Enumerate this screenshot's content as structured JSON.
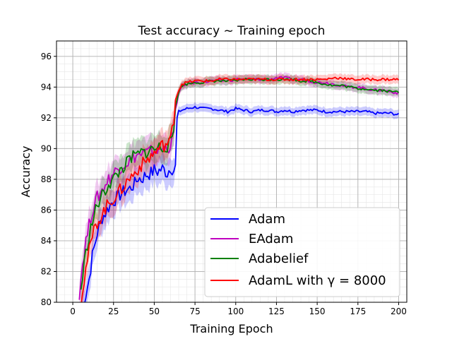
{
  "chart_data": {
    "type": "line",
    "title": "Test accuracy ~ Training epoch",
    "xlabel": "Training Epoch",
    "ylabel": "Accuracy",
    "xlim": [
      -10,
      205
    ],
    "ylim": [
      80,
      97
    ],
    "xticks": [
      0,
      25,
      50,
      75,
      100,
      125,
      150,
      175,
      200
    ],
    "yticks": [
      80,
      82,
      84,
      86,
      88,
      90,
      92,
      94,
      96
    ],
    "grid": true,
    "minor_grid": true,
    "legend_position": "lower-right",
    "series": [
      {
        "name": "Adam",
        "color": "#0000ff",
        "points": [
          [
            5,
            79.5
          ],
          [
            8,
            80.5
          ],
          [
            10,
            81.5
          ],
          [
            12,
            83
          ],
          [
            15,
            84.5
          ],
          [
            18,
            85.5
          ],
          [
            20,
            85.8
          ],
          [
            22,
            86.2
          ],
          [
            25,
            86.6
          ],
          [
            28,
            86.9
          ],
          [
            30,
            87.1
          ],
          [
            33,
            87.3
          ],
          [
            35,
            87.4
          ],
          [
            38,
            87.7
          ],
          [
            40,
            88.1
          ],
          [
            42,
            88.0
          ],
          [
            45,
            88.3
          ],
          [
            48,
            88.4
          ],
          [
            50,
            88.6
          ],
          [
            52,
            88.5
          ],
          [
            55,
            88.7
          ],
          [
            58,
            88.4
          ],
          [
            60,
            88.8
          ],
          [
            62,
            88.6
          ],
          [
            63,
            88.9
          ],
          [
            64,
            92.0
          ],
          [
            65,
            92.4
          ],
          [
            67,
            92.5
          ],
          [
            70,
            92.6
          ],
          [
            75,
            92.7
          ],
          [
            80,
            92.6
          ],
          [
            85,
            92.6
          ],
          [
            90,
            92.5
          ],
          [
            95,
            92.4
          ],
          [
            100,
            92.6
          ],
          [
            105,
            92.5
          ],
          [
            110,
            92.4
          ],
          [
            115,
            92.5
          ],
          [
            120,
            92.5
          ],
          [
            125,
            92.4
          ],
          [
            130,
            92.5
          ],
          [
            135,
            92.4
          ],
          [
            140,
            92.5
          ],
          [
            145,
            92.5
          ],
          [
            150,
            92.5
          ],
          [
            155,
            92.4
          ],
          [
            160,
            92.4
          ],
          [
            165,
            92.4
          ],
          [
            170,
            92.4
          ],
          [
            175,
            92.4
          ],
          [
            180,
            92.4
          ],
          [
            185,
            92.3
          ],
          [
            190,
            92.3
          ],
          [
            195,
            92.3
          ],
          [
            200,
            92.2
          ]
        ]
      },
      {
        "name": "EAdam",
        "color": "#bf00bf",
        "points": [
          [
            4,
            80.6
          ],
          [
            6,
            82.5
          ],
          [
            8,
            84
          ],
          [
            10,
            85
          ],
          [
            12,
            86
          ],
          [
            15,
            86.8
          ],
          [
            18,
            87.3
          ],
          [
            20,
            87.7
          ],
          [
            22,
            88
          ],
          [
            25,
            88.4
          ],
          [
            28,
            88.7
          ],
          [
            30,
            88.9
          ],
          [
            33,
            89.1
          ],
          [
            35,
            89.2
          ],
          [
            38,
            89.5
          ],
          [
            40,
            89.6
          ],
          [
            42,
            89.6
          ],
          [
            45,
            89.7
          ],
          [
            48,
            89.8
          ],
          [
            50,
            89.9
          ],
          [
            55,
            90.0
          ],
          [
            58,
            90.1
          ],
          [
            60,
            90.2
          ],
          [
            62,
            91.0
          ],
          [
            63,
            92.5
          ],
          [
            65,
            93.6
          ],
          [
            67,
            94.0
          ],
          [
            70,
            94.2
          ],
          [
            75,
            94.3
          ],
          [
            80,
            94.3
          ],
          [
            85,
            94.4
          ],
          [
            90,
            94.4
          ],
          [
            95,
            94.4
          ],
          [
            100,
            94.5
          ],
          [
            105,
            94.5
          ],
          [
            110,
            94.5
          ],
          [
            115,
            94.5
          ],
          [
            120,
            94.5
          ],
          [
            125,
            94.6
          ],
          [
            130,
            94.6
          ],
          [
            135,
            94.5
          ],
          [
            140,
            94.5
          ],
          [
            145,
            94.4
          ],
          [
            150,
            94.3
          ],
          [
            155,
            94.3
          ],
          [
            160,
            94.2
          ],
          [
            165,
            94.1
          ],
          [
            170,
            94.0
          ],
          [
            175,
            94.0
          ],
          [
            180,
            93.9
          ],
          [
            185,
            93.8
          ],
          [
            190,
            93.8
          ],
          [
            195,
            93.7
          ],
          [
            200,
            93.6
          ]
        ]
      },
      {
        "name": "Adabelief",
        "color": "#008000",
        "points": [
          [
            5,
            80.8
          ],
          [
            7,
            82.5
          ],
          [
            9,
            83.8
          ],
          [
            11,
            84.8
          ],
          [
            13,
            85.6
          ],
          [
            15,
            86.3
          ],
          [
            18,
            86.9
          ],
          [
            20,
            87.3
          ],
          [
            22,
            87.7
          ],
          [
            25,
            88.0
          ],
          [
            28,
            88.4
          ],
          [
            30,
            88.7
          ],
          [
            33,
            89.0
          ],
          [
            35,
            89.3
          ],
          [
            38,
            89.5
          ],
          [
            40,
            89.6
          ],
          [
            42,
            89.7
          ],
          [
            45,
            89.8
          ],
          [
            48,
            89.9
          ],
          [
            50,
            90.0
          ],
          [
            55,
            90.1
          ],
          [
            58,
            90.2
          ],
          [
            60,
            90.3
          ],
          [
            62,
            91.2
          ],
          [
            63,
            92.8
          ],
          [
            65,
            93.7
          ],
          [
            67,
            94.1
          ],
          [
            70,
            94.2
          ],
          [
            75,
            94.3
          ],
          [
            80,
            94.3
          ],
          [
            85,
            94.4
          ],
          [
            90,
            94.4
          ],
          [
            95,
            94.4
          ],
          [
            100,
            94.4
          ],
          [
            105,
            94.5
          ],
          [
            110,
            94.5
          ],
          [
            115,
            94.5
          ],
          [
            120,
            94.5
          ],
          [
            125,
            94.5
          ],
          [
            130,
            94.5
          ],
          [
            135,
            94.5
          ],
          [
            140,
            94.4
          ],
          [
            145,
            94.4
          ],
          [
            150,
            94.3
          ],
          [
            155,
            94.2
          ],
          [
            160,
            94.1
          ],
          [
            165,
            94.1
          ],
          [
            170,
            94.0
          ],
          [
            175,
            93.9
          ],
          [
            180,
            93.9
          ],
          [
            185,
            93.8
          ],
          [
            190,
            93.8
          ],
          [
            195,
            93.7
          ],
          [
            200,
            93.7
          ]
        ]
      },
      {
        "name": "AdamL with γ = 8000",
        "color": "#ff0000",
        "points": [
          [
            5,
            80.2
          ],
          [
            7,
            81.5
          ],
          [
            9,
            82.8
          ],
          [
            11,
            83.8
          ],
          [
            13,
            84.6
          ],
          [
            15,
            85.2
          ],
          [
            18,
            85.7
          ],
          [
            20,
            86.1
          ],
          [
            22,
            86.4
          ],
          [
            25,
            86.8
          ],
          [
            28,
            87.1
          ],
          [
            30,
            87.4
          ],
          [
            33,
            87.8
          ],
          [
            35,
            88.1
          ],
          [
            38,
            88.4
          ],
          [
            40,
            88.7
          ],
          [
            42,
            88.9
          ],
          [
            45,
            89.2
          ],
          [
            48,
            89.5
          ],
          [
            50,
            89.7
          ],
          [
            52,
            89.9
          ],
          [
            55,
            90.2
          ],
          [
            58,
            90.3
          ],
          [
            60,
            90.5
          ],
          [
            62,
            92.0
          ],
          [
            63,
            93.2
          ],
          [
            65,
            93.8
          ],
          [
            67,
            94.2
          ],
          [
            70,
            94.3
          ],
          [
            75,
            94.4
          ],
          [
            80,
            94.4
          ],
          [
            85,
            94.4
          ],
          [
            90,
            94.5
          ],
          [
            95,
            94.5
          ],
          [
            100,
            94.5
          ],
          [
            105,
            94.5
          ],
          [
            110,
            94.5
          ],
          [
            115,
            94.5
          ],
          [
            120,
            94.5
          ],
          [
            125,
            94.5
          ],
          [
            130,
            94.5
          ],
          [
            135,
            94.5
          ],
          [
            140,
            94.5
          ],
          [
            145,
            94.5
          ],
          [
            150,
            94.5
          ],
          [
            155,
            94.5
          ],
          [
            160,
            94.6
          ],
          [
            165,
            94.6
          ],
          [
            170,
            94.5
          ],
          [
            175,
            94.5
          ],
          [
            180,
            94.5
          ],
          [
            185,
            94.5
          ],
          [
            190,
            94.5
          ],
          [
            195,
            94.5
          ],
          [
            200,
            94.5
          ]
        ]
      }
    ]
  }
}
